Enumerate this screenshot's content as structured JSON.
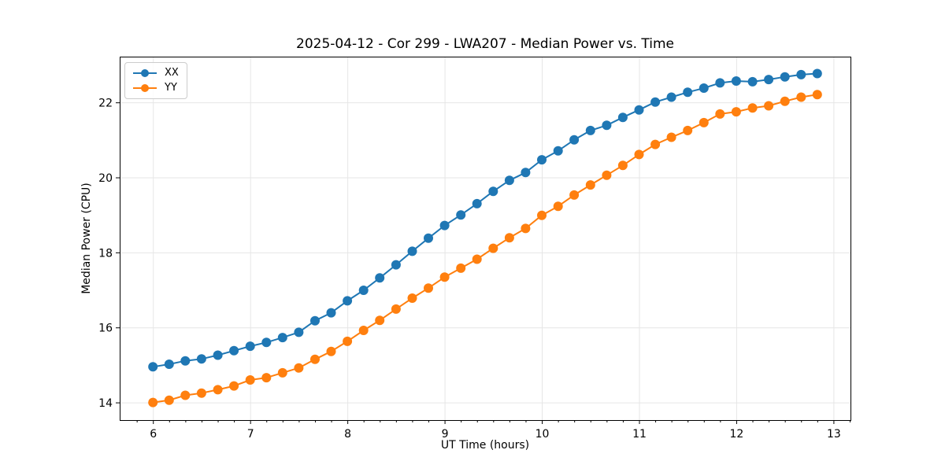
{
  "chart_data": {
    "type": "line",
    "title": "2025-04-12 - Cor 299 - LWA207 - Median Power vs. Time",
    "xlabel": "UT Time (hours)",
    "ylabel": "Median Power (CPU)",
    "xlim": [
      5.658,
      13.175
    ],
    "ylim": [
      13.53,
      23.22
    ],
    "xticks": [
      6,
      7,
      8,
      9,
      10,
      11,
      12,
      13
    ],
    "yticks": [
      14,
      16,
      18,
      20,
      22
    ],
    "x_minor_tick_step": 0.1667,
    "grid": true,
    "grid_color": "#e6e6e6",
    "legend_position": "upper-left",
    "x": [
      6,
      6.167,
      6.333,
      6.5,
      6.667,
      6.833,
      7,
      7.167,
      7.333,
      7.5,
      7.667,
      7.833,
      8,
      8.167,
      8.333,
      8.5,
      8.667,
      8.833,
      9,
      9.167,
      9.333,
      9.5,
      9.667,
      9.833,
      10,
      10.167,
      10.333,
      10.5,
      10.667,
      10.833,
      11,
      11.167,
      11.333,
      11.5,
      11.667,
      11.833,
      12,
      12.167,
      12.333,
      12.5,
      12.667,
      12.833
    ],
    "series": [
      {
        "name": "XX",
        "color": "#1f77b4",
        "values": [
          14.95,
          15.02,
          15.11,
          15.16,
          15.26,
          15.38,
          15.5,
          15.6,
          15.73,
          15.87,
          16.18,
          16.39,
          16.71,
          16.99,
          17.32,
          17.67,
          18.03,
          18.38,
          18.72,
          19.0,
          19.3,
          19.63,
          19.92,
          20.13,
          20.47,
          20.71,
          21.0,
          21.25,
          21.39,
          21.6,
          21.8,
          22.01,
          22.14,
          22.27,
          22.38,
          22.52,
          22.57,
          22.55,
          22.61,
          22.68,
          22.74,
          22.77
        ]
      },
      {
        "name": "YY",
        "color": "#ff7f0e",
        "values": [
          14.0,
          14.06,
          14.19,
          14.25,
          14.34,
          14.44,
          14.6,
          14.66,
          14.79,
          14.92,
          15.15,
          15.36,
          15.63,
          15.92,
          16.19,
          16.49,
          16.78,
          17.05,
          17.34,
          17.58,
          17.82,
          18.11,
          18.39,
          18.64,
          18.99,
          19.23,
          19.53,
          19.8,
          20.06,
          20.32,
          20.61,
          20.88,
          21.07,
          21.25,
          21.46,
          21.69,
          21.75,
          21.85,
          21.91,
          22.03,
          22.14,
          22.21
        ]
      }
    ]
  }
}
